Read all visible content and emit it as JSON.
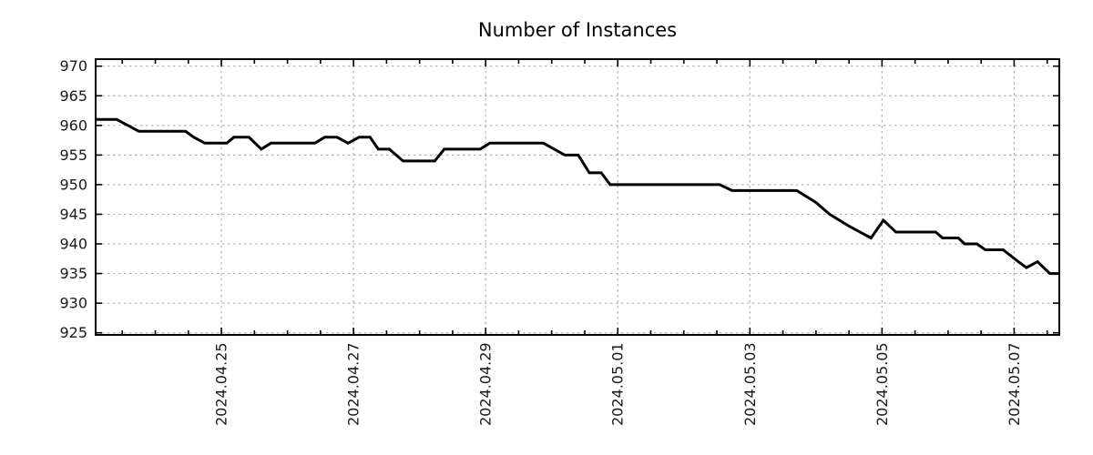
{
  "chart_data": {
    "type": "line",
    "title": "Number of Instances",
    "xlabel": "",
    "ylabel": "",
    "legend": "none",
    "grid": true,
    "grid_style": "dotted",
    "y_ticks": [
      925,
      930,
      935,
      940,
      945,
      950,
      955,
      960,
      965,
      970
    ],
    "ylim": [
      924.6,
      971.2
    ],
    "x_tick_labels": [
      "2024.04.25",
      "2024.04.27",
      "2024.04.29",
      "2024.05.01",
      "2024.05.03",
      "2024.05.05",
      "2024.05.07"
    ],
    "x_tick_offsets_days": [
      2,
      4,
      6,
      8,
      10,
      12,
      14
    ],
    "x_minor_tick_step_days": 0.5,
    "x_domain_days_from_2024_04_23": [
      0.1,
      14.69
    ],
    "colors": {
      "line": "#000000",
      "grid": "#b0b0b0",
      "axis": "#000000",
      "labels": "#1a1a1a",
      "background": "#ffffff"
    },
    "series": [
      {
        "name": "instances",
        "color": "#000000",
        "points": [
          [
            "2024-04-23 02:30",
            961
          ],
          [
            "2024-04-23 10:00",
            961
          ],
          [
            "2024-04-23 14:00",
            960
          ],
          [
            "2024-04-23 18:00",
            959
          ],
          [
            "2024-04-24 11:00",
            959
          ],
          [
            "2024-04-24 14:00",
            958
          ],
          [
            "2024-04-24 18:00",
            957
          ],
          [
            "2024-04-25 02:00",
            957
          ],
          [
            "2024-04-25 04:30",
            958
          ],
          [
            "2024-04-25 10:00",
            958
          ],
          [
            "2024-04-25 14:30",
            956
          ],
          [
            "2024-04-25 18:00",
            957
          ],
          [
            "2024-04-26 10:00",
            957
          ],
          [
            "2024-04-26 13:30",
            958
          ],
          [
            "2024-04-26 18:00",
            958
          ],
          [
            "2024-04-26 22:00",
            957
          ],
          [
            "2024-04-27 02:00",
            958
          ],
          [
            "2024-04-27 06:00",
            958
          ],
          [
            "2024-04-27 09:00",
            956
          ],
          [
            "2024-04-27 13:00",
            956
          ],
          [
            "2024-04-27 18:00",
            954
          ],
          [
            "2024-04-28 05:30",
            954
          ],
          [
            "2024-04-28 09:00",
            956
          ],
          [
            "2024-04-28 22:00",
            956
          ],
          [
            "2024-04-29 01:30",
            957
          ],
          [
            "2024-04-29 21:00",
            957
          ],
          [
            "2024-04-30 04:45",
            955
          ],
          [
            "2024-04-30 09:40",
            955
          ],
          [
            "2024-04-30 13:40",
            952
          ],
          [
            "2024-04-30 18:00",
            952
          ],
          [
            "2024-04-30 21:15",
            950
          ],
          [
            "2024-05-02 13:00",
            950
          ],
          [
            "2024-05-02 17:30",
            949
          ],
          [
            "2024-05-03 17:00",
            949
          ],
          [
            "2024-05-04 00:00",
            947
          ],
          [
            "2024-05-04 05:00",
            945
          ],
          [
            "2024-05-04 12:00",
            943
          ],
          [
            "2024-05-04 20:00",
            941
          ],
          [
            "2024-05-05 00:30",
            944
          ],
          [
            "2024-05-05 05:00",
            942
          ],
          [
            "2024-05-05 19:30",
            942
          ],
          [
            "2024-05-05 22:00",
            941
          ],
          [
            "2024-05-06 03:45",
            941
          ],
          [
            "2024-05-06 06:00",
            940
          ],
          [
            "2024-05-06 10:30",
            940
          ],
          [
            "2024-05-06 13:30",
            939
          ],
          [
            "2024-05-06 20:00",
            939
          ],
          [
            "2024-05-07 01:30",
            937
          ],
          [
            "2024-05-07 04:30",
            936
          ],
          [
            "2024-05-07 08:30",
            937
          ],
          [
            "2024-05-07 13:00",
            935
          ],
          [
            "2024-05-07 16:30",
            935
          ]
        ]
      }
    ]
  }
}
